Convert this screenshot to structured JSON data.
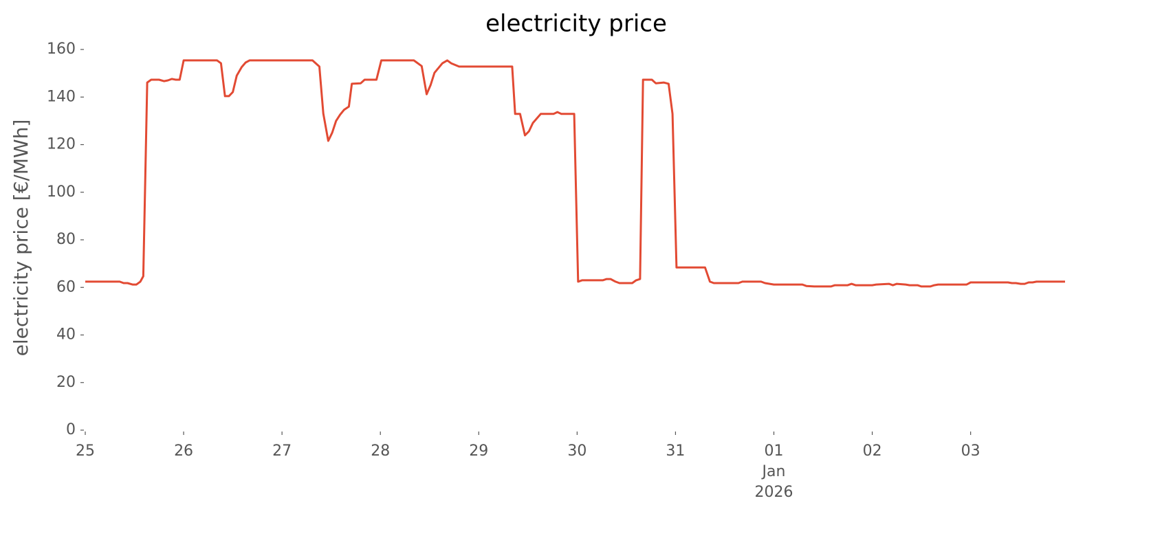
{
  "chart_data": {
    "type": "line",
    "title": "electricity price",
    "ylabel": "electricity price [€/MWh]",
    "ylim": [
      0,
      160
    ],
    "yticks": [
      0,
      20,
      40,
      60,
      80,
      100,
      120,
      140,
      160
    ],
    "xlim": [
      0,
      9.96
    ],
    "xticks": [
      {
        "value": 0,
        "label": "25"
      },
      {
        "value": 1,
        "label": "26"
      },
      {
        "value": 2,
        "label": "27"
      },
      {
        "value": 3,
        "label": "28"
      },
      {
        "value": 4,
        "label": "29"
      },
      {
        "value": 5,
        "label": "30"
      },
      {
        "value": 6,
        "label": "31"
      },
      {
        "value": 7,
        "label": "01\nJan\n2026"
      },
      {
        "value": 8,
        "label": "02"
      },
      {
        "value": 9,
        "label": "03"
      }
    ],
    "grid": false,
    "series": [
      {
        "name": "electricity price",
        "color": "#e24a33",
        "x": [
          0,
          0.35,
          0.39,
          0.43,
          0.48,
          0.52,
          0.56,
          0.59,
          0.63,
          0.67,
          0.75,
          0.8,
          0.84,
          0.88,
          0.92,
          0.96,
          1.0,
          1.34,
          1.38,
          1.42,
          1.46,
          1.5,
          1.54,
          1.59,
          1.63,
          1.67,
          2.31,
          2.38,
          2.42,
          2.47,
          2.51,
          2.55,
          2.59,
          2.63,
          2.68,
          2.71,
          2.8,
          2.84,
          2.96,
          3.01,
          3.34,
          3.42,
          3.47,
          3.51,
          3.55,
          3.63,
          3.68,
          3.72,
          3.8,
          4.34,
          4.37,
          4.42,
          4.47,
          4.51,
          4.55,
          4.63,
          4.76,
          4.8,
          4.84,
          4.97,
          5.01,
          5.05,
          5.26,
          5.3,
          5.34,
          5.39,
          5.43,
          5.56,
          5.6,
          5.64,
          5.67,
          5.76,
          5.8,
          5.88,
          5.93,
          5.97,
          6.01,
          6.3,
          6.35,
          6.39,
          6.64,
          6.68,
          6.87,
          6.91,
          7.0,
          7.29,
          7.33,
          7.41,
          7.58,
          7.62,
          7.75,
          7.79,
          7.83,
          8.0,
          8.04,
          8.17,
          8.21,
          8.25,
          8.34,
          8.38,
          8.46,
          8.5,
          8.59,
          8.63,
          8.67,
          8.96,
          9.0,
          9.38,
          9.42,
          9.46,
          9.51,
          9.55,
          9.59,
          9.63,
          9.67,
          9.96
        ],
        "values": [
          62.4,
          62.4,
          61.8,
          61.8,
          61.2,
          61.2,
          62.4,
          64.7,
          146.1,
          147.3,
          147.3,
          146.7,
          147,
          147.6,
          147.3,
          147.3,
          155.4,
          155.4,
          154.2,
          140.4,
          140.4,
          142.1,
          149,
          152.6,
          154.5,
          155.4,
          155.4,
          152.8,
          133.1,
          121.6,
          125,
          130,
          132.6,
          134.6,
          136,
          145.6,
          145.8,
          147.3,
          147.3,
          155.4,
          155.4,
          153,
          141.2,
          145,
          150.2,
          154.2,
          155.4,
          154.2,
          152.8,
          152.8,
          132.9,
          132.9,
          123.9,
          125.6,
          129.1,
          132.9,
          132.9,
          133.7,
          132.9,
          132.9,
          62.4,
          63,
          63,
          63.5,
          63.5,
          62.4,
          61.8,
          61.8,
          63,
          63.5,
          147.3,
          147.3,
          145.8,
          146.1,
          145.6,
          132.9,
          68.4,
          68.4,
          62.4,
          61.8,
          61.8,
          62.4,
          62.4,
          61.8,
          61.2,
          61.2,
          60.6,
          60.4,
          60.4,
          60.9,
          60.9,
          61.5,
          60.9,
          60.9,
          61.2,
          61.5,
          60.9,
          61.5,
          61.2,
          60.9,
          60.9,
          60.4,
          60.4,
          60.9,
          61.2,
          61.2,
          62.1,
          62.1,
          61.8,
          61.8,
          61.5,
          61.5,
          62.1,
          62.1,
          62.4,
          62.4
        ]
      }
    ]
  }
}
